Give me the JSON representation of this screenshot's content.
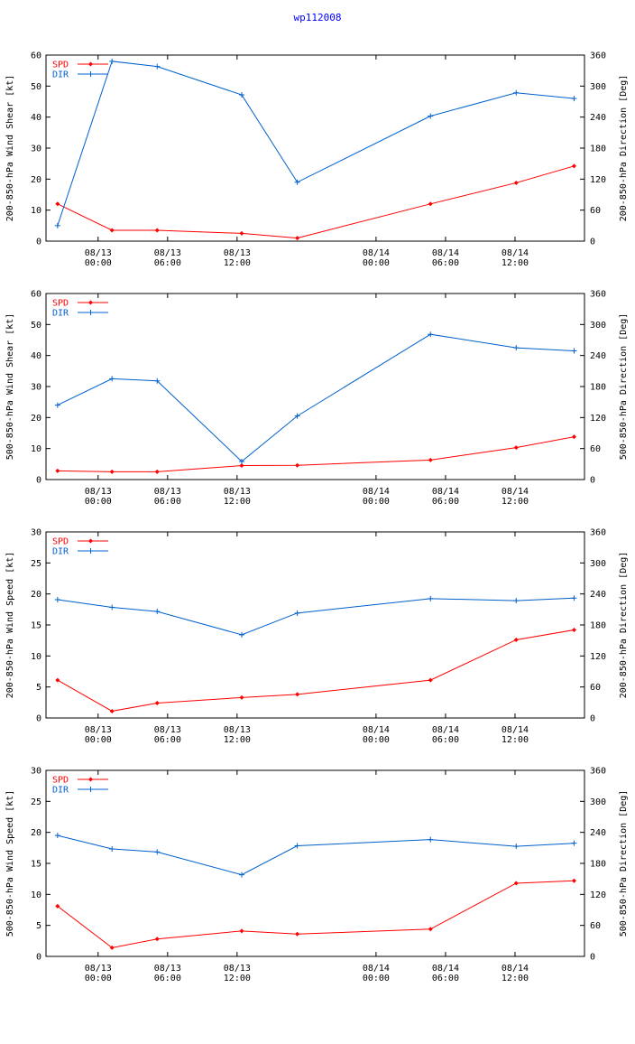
{
  "title": "wp112008",
  "colors": {
    "spd": "#ff0000",
    "dir": "#0060cc",
    "axis": "#000000"
  },
  "x_ticks": [
    {
      "t": 0,
      "date": "08/13",
      "time": "00:00"
    },
    {
      "t": 6,
      "date": "08/13",
      "time": "06:00"
    },
    {
      "t": 12,
      "date": "08/13",
      "time": "12:00"
    },
    {
      "t": 24,
      "date": "08/14",
      "time": "00:00"
    },
    {
      "t": 30,
      "date": "08/14",
      "time": "06:00"
    },
    {
      "t": 36,
      "date": "08/14",
      "time": "12:00"
    }
  ],
  "chart_data": [
    {
      "type": "line",
      "ylabel_left": "200-850-hPa Wind Shear [kt]",
      "ylabel_right": "200-850-hPa Direction [Deg]",
      "xlim": [
        -4.5,
        42
      ],
      "ylim_left": [
        0,
        60
      ],
      "yticks_left": [
        0,
        10,
        20,
        30,
        40,
        50,
        60
      ],
      "ylim_right": [
        0,
        360
      ],
      "yticks_right": [
        0,
        60,
        120,
        180,
        240,
        300,
        360
      ],
      "legend": [
        "SPD",
        "DIR"
      ],
      "x": [
        -3.5,
        1.2,
        5.1,
        12.4,
        17.2,
        28.7,
        36.1,
        41.1
      ],
      "series": [
        {
          "name": "SPD",
          "axis": "left",
          "values": [
            12,
            3.5,
            3.5,
            2.5,
            1.0,
            12,
            18.8,
            24.2
          ]
        },
        {
          "name": "DIR",
          "axis": "right",
          "values": [
            30,
            348,
            338,
            283,
            114,
            242,
            287,
            276
          ]
        }
      ]
    },
    {
      "type": "line",
      "ylabel_left": "500-850-hPa Wind Shear [kt]",
      "ylabel_right": "500-850-hPa Direction [Deg]",
      "xlim": [
        -4.5,
        42
      ],
      "ylim_left": [
        0,
        60
      ],
      "yticks_left": [
        0,
        10,
        20,
        30,
        40,
        50,
        60
      ],
      "ylim_right": [
        0,
        360
      ],
      "yticks_right": [
        0,
        60,
        120,
        180,
        240,
        300,
        360
      ],
      "legend": [
        "SPD",
        "DIR"
      ],
      "x": [
        -3.5,
        1.2,
        5.1,
        12.4,
        17.2,
        28.7,
        36.1,
        41.1
      ],
      "series": [
        {
          "name": "SPD",
          "axis": "left",
          "values": [
            2.8,
            2.5,
            2.5,
            4.5,
            4.6,
            6.3,
            10.3,
            13.8
          ]
        },
        {
          "name": "DIR",
          "axis": "right",
          "values": [
            144,
            195,
            191,
            35,
            123,
            281,
            255,
            249
          ]
        }
      ]
    },
    {
      "type": "line",
      "ylabel_left": "200-850-hPa Wind Speed [kt]",
      "ylabel_right": "200-850-hPa Direction [Deg]",
      "xlim": [
        -4.5,
        42
      ],
      "ylim_left": [
        0,
        30
      ],
      "yticks_left": [
        0,
        5,
        10,
        15,
        20,
        25,
        30
      ],
      "ylim_right": [
        0,
        360
      ],
      "yticks_right": [
        0,
        60,
        120,
        180,
        240,
        300,
        360
      ],
      "legend": [
        "SPD",
        "DIR"
      ],
      "x": [
        -3.5,
        1.2,
        5.1,
        12.4,
        17.2,
        28.7,
        36.1,
        41.1
      ],
      "series": [
        {
          "name": "SPD",
          "axis": "left",
          "values": [
            6.1,
            1.1,
            2.4,
            3.3,
            3.8,
            6.1,
            12.6,
            14.2
          ]
        },
        {
          "name": "DIR",
          "axis": "right",
          "values": [
            229,
            214,
            206,
            161,
            203,
            231,
            227,
            232
          ]
        }
      ]
    },
    {
      "type": "line",
      "ylabel_left": "500-850-hPa Wind Speed [kt]",
      "ylabel_right": "500-850-hPa Direction [Deg]",
      "xlim": [
        -4.5,
        42
      ],
      "ylim_left": [
        0,
        30
      ],
      "yticks_left": [
        0,
        5,
        10,
        15,
        20,
        25,
        30
      ],
      "ylim_right": [
        0,
        360
      ],
      "yticks_right": [
        0,
        60,
        120,
        180,
        240,
        300,
        360
      ],
      "legend": [
        "SPD",
        "DIR"
      ],
      "x": [
        -3.5,
        1.2,
        5.1,
        12.4,
        17.2,
        28.7,
        36.1,
        41.1
      ],
      "series": [
        {
          "name": "SPD",
          "axis": "left",
          "values": [
            8.1,
            1.4,
            2.8,
            4.1,
            3.6,
            4.4,
            11.8,
            12.2
          ]
        },
        {
          "name": "DIR",
          "axis": "right",
          "values": [
            234,
            208,
            202,
            158,
            214,
            226,
            213,
            219
          ]
        }
      ]
    }
  ]
}
